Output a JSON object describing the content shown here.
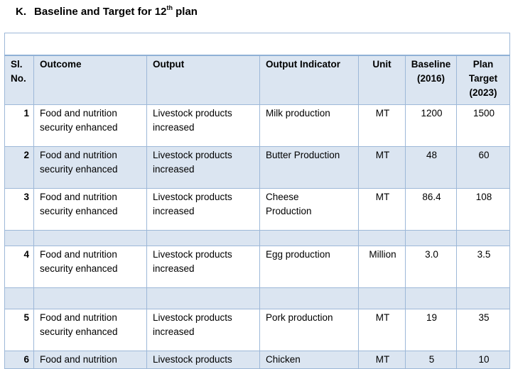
{
  "heading": {
    "letter": "K.",
    "text": "Baseline and Target for 12",
    "sup": "th",
    "suffix": " plan"
  },
  "table": {
    "title": "",
    "headers": {
      "sl_line1": "Sl.",
      "sl_line2": "No.",
      "outcome": "Outcome",
      "output": "Output",
      "indicator": "Output Indicator",
      "unit": "Unit",
      "baseline_line1": "Baseline",
      "baseline_line2": "(2016)",
      "target_line1": "Plan",
      "target_line2": "Target",
      "target_line3": "(2023)"
    },
    "rows": [
      {
        "sl": "1",
        "outcome_1": "Food and nutrition",
        "outcome_2": "security enhanced",
        "output_1": "Livestock products",
        "output_2": "increased",
        "indicator_1": "Milk production",
        "indicator_2": "",
        "unit": "MT",
        "baseline": "1200",
        "target": "1500"
      },
      {
        "sl": "2",
        "outcome_1": "Food and nutrition",
        "outcome_2": "security enhanced",
        "output_1": "Livestock products",
        "output_2": "increased",
        "indicator_1": "Butter Production",
        "indicator_2": "",
        "unit": "MT",
        "baseline": "48",
        "target": "60"
      },
      {
        "sl": "3",
        "outcome_1": "Food and nutrition",
        "outcome_2": "security enhanced",
        "output_1": "Livestock products",
        "output_2": "increased",
        "indicator_1": "Cheese",
        "indicator_2": "Production",
        "unit": "MT",
        "baseline": "86.4",
        "target": "108"
      },
      {
        "sl": "4",
        "outcome_1": "Food and nutrition",
        "outcome_2": "security enhanced",
        "output_1": "Livestock products",
        "output_2": "increased",
        "indicator_1": "Egg production",
        "indicator_2": "",
        "unit": "Million",
        "baseline": "3.0",
        "target": "3.5"
      },
      {
        "sl": "5",
        "outcome_1": "Food and nutrition",
        "outcome_2": "security enhanced",
        "output_1": "Livestock products",
        "output_2": "increased",
        "indicator_1": "Pork production",
        "indicator_2": "",
        "unit": "MT",
        "baseline": "19",
        "target": "35"
      },
      {
        "sl": "6",
        "outcome_1": "Food and nutrition",
        "outcome_2": "",
        "output_1": "Livestock products",
        "output_2": "",
        "indicator_1": "Chicken",
        "indicator_2": "",
        "unit": "MT",
        "baseline": "5",
        "target": "10"
      }
    ]
  },
  "colors": {
    "header_fill": "#dbe5f1",
    "border": "#9db8d8"
  }
}
